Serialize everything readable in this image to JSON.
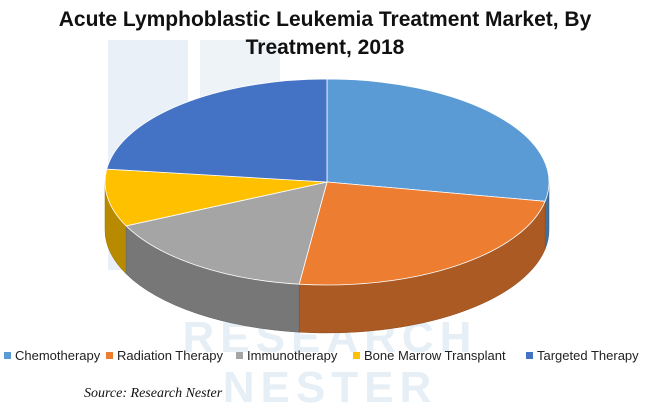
{
  "watermark_lines": [
    "RESEARCH",
    "NESTER"
  ],
  "chart_data": {
    "type": "pie",
    "style": "3d",
    "title_line1": "Acute Lymphoblastic Leukemia Treatment Market, By",
    "title_line2": "Treatment, 2018",
    "categories": [
      "Chemotherapy",
      "Radiation Therapy",
      "Immunotherapy",
      "Bone Marrow Transplant",
      "Targeted Therapy"
    ],
    "values": [
      28,
      24,
      16,
      9,
      23
    ],
    "colors": [
      "#5B9BD5",
      "#ED7D31",
      "#A5A5A5",
      "#FFC000",
      "#4472C4"
    ],
    "legend_position": "bottom"
  },
  "source": "Source: Research Nester"
}
